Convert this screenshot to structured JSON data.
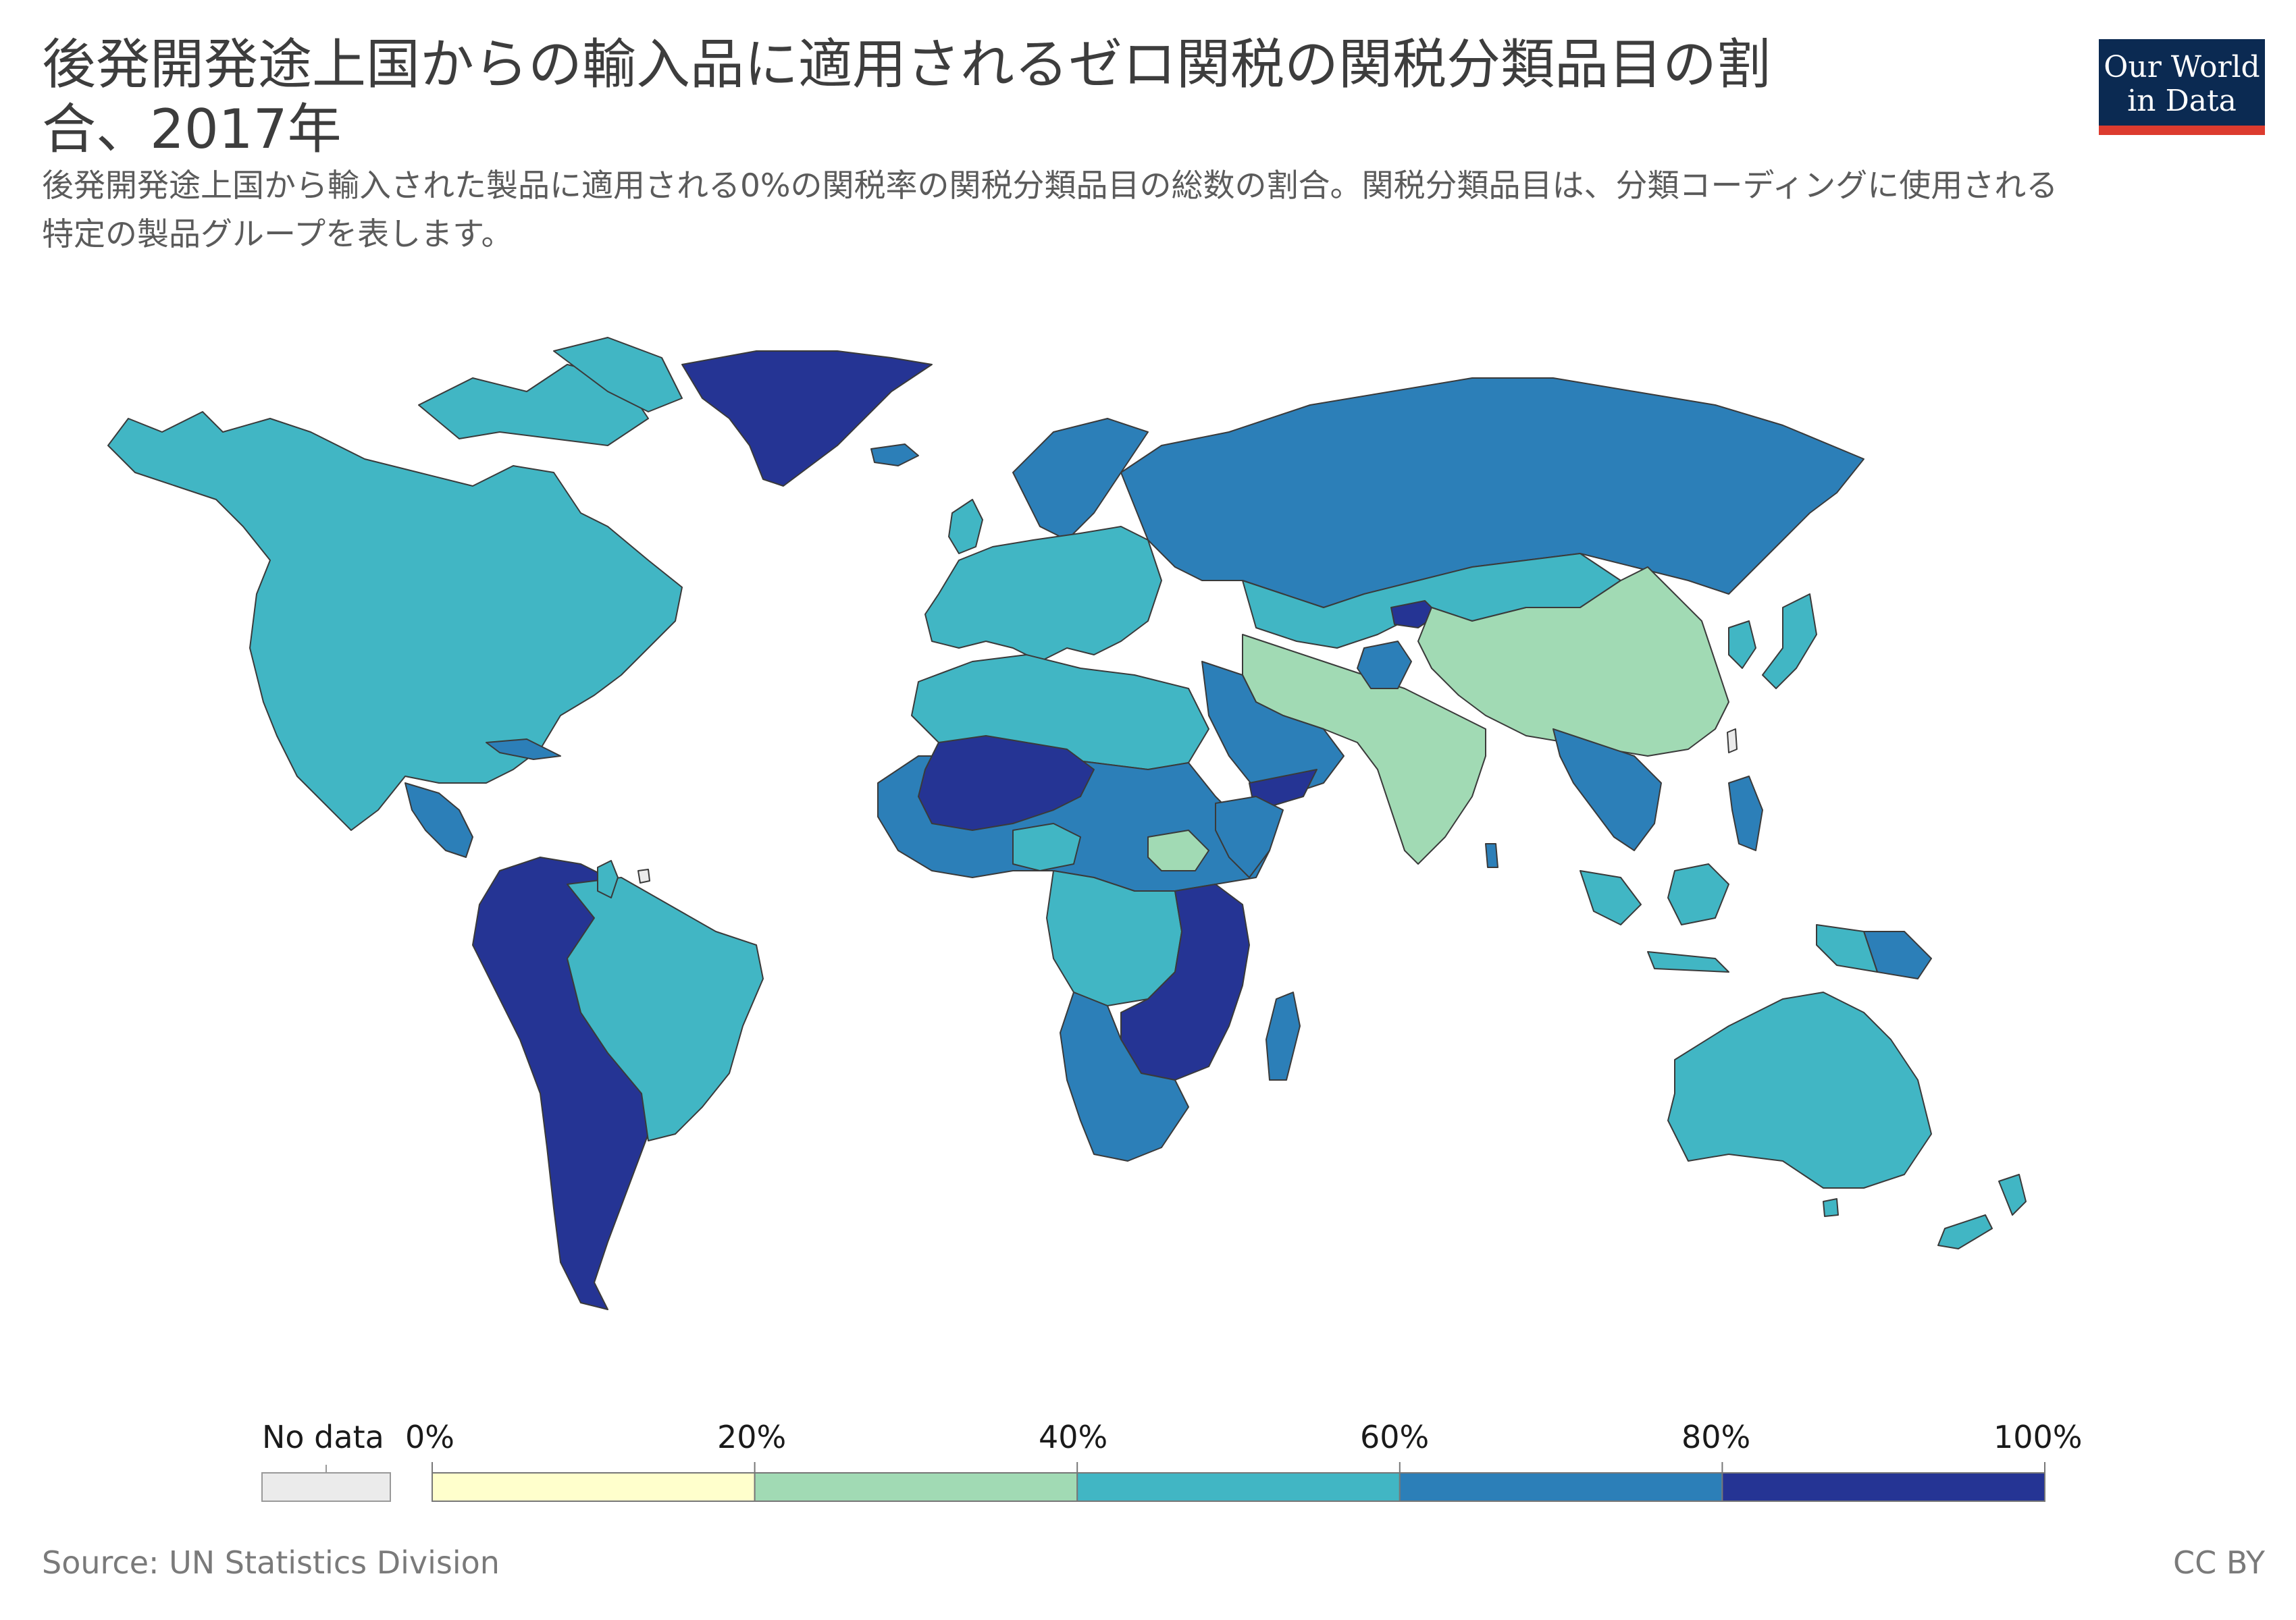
{
  "header": {
    "title": "後発開発途上国からの輸入品に適用されるゼロ関税の関税分類品目の割合、2017年",
    "subtitle": "後発開発途上国から輸入された製品に適用される0%の関税率の関税分類品目の総数の割合。関税分類品目は、分類コーディングに使用される特定の製品グループを表します。"
  },
  "logo": {
    "line1": "Our World",
    "line2": "in Data"
  },
  "legend": {
    "no_data_label": "No data",
    "no_data_color": "#ebebeb",
    "ticks": [
      "0%",
      "20%",
      "40%",
      "60%",
      "80%",
      "100%"
    ],
    "bins": [
      {
        "range": "0%–20%",
        "color": "#ffffcc"
      },
      {
        "range": "20%–40%",
        "color": "#a1dab4"
      },
      {
        "range": "40%–60%",
        "color": "#41b6c4"
      },
      {
        "range": "60%–80%",
        "color": "#2c7fb8"
      },
      {
        "range": "80%–100%",
        "color": "#253494"
      }
    ]
  },
  "footer": {
    "source": "Source: UN Statistics Division",
    "license": "CC BY"
  },
  "map_regions": [
    {
      "region": "North America / Canada / USA / Mexico / Alaska",
      "color": "#41b6c4"
    },
    {
      "region": "Greenland",
      "color": "#253494"
    },
    {
      "region": "Central America",
      "color": "#2c7fb8"
    },
    {
      "region": "Cuba / Caribbean",
      "color": "#2c7fb8"
    },
    {
      "region": "Brazil",
      "color": "#41b6c4"
    },
    {
      "region": "Andean South America / Argentina / Chile",
      "color": "#2c7fb8"
    },
    {
      "region": "Guyana",
      "color": "#253494"
    },
    {
      "region": "Europe",
      "color": "#41b6c4"
    },
    {
      "region": "Scandinavia",
      "color": "#2c7fb8"
    },
    {
      "region": "Russia",
      "color": "#2c7fb8"
    },
    {
      "region": "Kazakhstan / Mongolia",
      "color": "#41b6c4"
    },
    {
      "region": "Kyrgyzstan",
      "color": "#253494"
    },
    {
      "region": "China",
      "color": "#a1dab4"
    },
    {
      "region": "India / Iran",
      "color": "#a1dab4"
    },
    {
      "region": "Afghanistan / Pakistan",
      "color": "#2c7fb8"
    },
    {
      "region": "Saudi Arabia / Middle East",
      "color": "#2c7fb8"
    },
    {
      "region": "Yemen",
      "color": "#253494"
    },
    {
      "region": "Southeast Asia",
      "color": "#2c7fb8"
    },
    {
      "region": "Indonesia / Malaysia",
      "color": "#41b6c4"
    },
    {
      "region": "Japan / Korea",
      "color": "#41b6c4"
    },
    {
      "region": "Australia / New Zealand",
      "color": "#41b6c4"
    },
    {
      "region": "Papua New Guinea",
      "color": "#2c7fb8"
    },
    {
      "region": "North Africa",
      "color": "#41b6c4"
    },
    {
      "region": "Mali / Niger / Burkina Faso",
      "color": "#253494"
    },
    {
      "region": "West & Central Africa",
      "color": "#2c7fb8"
    },
    {
      "region": "Nigeria",
      "color": "#41b6c4"
    },
    {
      "region": "South Sudan",
      "color": "#a1dab4"
    },
    {
      "region": "DR Congo / Angola",
      "color": "#41b6c4"
    },
    {
      "region": "Tanzania / Mozambique / Zimbabwe / Botswana",
      "color": "#253494"
    },
    {
      "region": "Southern Africa / Namibia",
      "color": "#2c7fb8"
    },
    {
      "region": "Madagascar",
      "color": "#2c7fb8"
    },
    {
      "region": "Taiwan",
      "color": "#ebebeb"
    },
    {
      "region": "French Guiana",
      "color": "#ebebeb"
    }
  ]
}
